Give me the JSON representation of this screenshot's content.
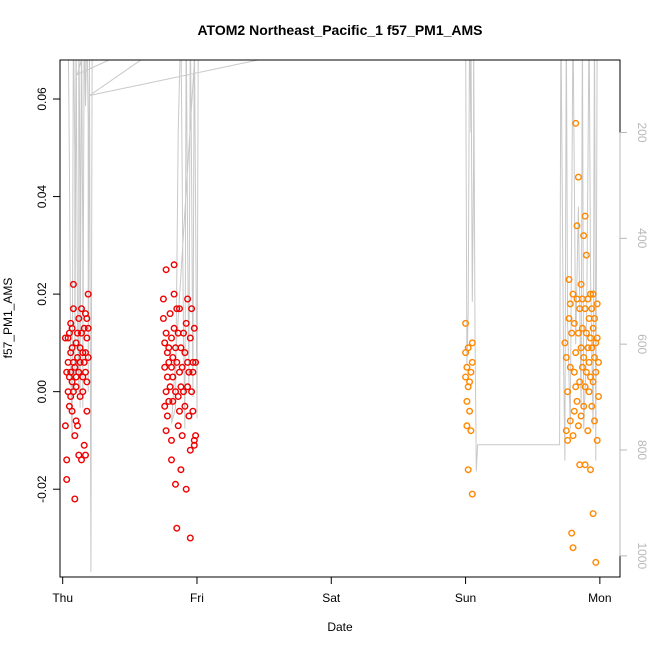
{
  "chart_data": {
    "type": "scatter",
    "title": "ATOM2 Northeast_Pacific_1 f57_PM1_AMS",
    "xlabel": "Date",
    "ylabel": "f57_PM1_AMS",
    "x_ticks": [
      "Thu",
      "Fri",
      "Sat",
      "Sun",
      "Mon"
    ],
    "y_ticks": [
      -0.02,
      0.0,
      0.02,
      0.04,
      0.06
    ],
    "y_tick_labels": [
      "-0.02",
      "0.00",
      "0.02",
      "0.04",
      "0.06"
    ],
    "ylim": [
      -0.038,
      0.068
    ],
    "xlim": [
      -0.02,
      4.15
    ],
    "right_axis": {
      "ticks": [
        200,
        400,
        600,
        800,
        1000
      ],
      "tick_labels": [
        "200",
        "400",
        "600",
        "800",
        "1000"
      ],
      "lim": [
        63,
        1040
      ],
      "reversed": true,
      "color": "#b8b8b8"
    },
    "series": [
      {
        "color": "#ee0000",
        "points": [
          [
            0.02,
            0.011
          ],
          [
            0.02,
            -0.007
          ],
          [
            0.03,
            0.004
          ],
          [
            0.03,
            -0.018
          ],
          [
            0.03,
            -0.014
          ],
          [
            0.04,
            0.006
          ],
          [
            0.04,
            0.0
          ],
          [
            0.04,
            0.011
          ],
          [
            0.05,
            0.012
          ],
          [
            0.05,
            0.003
          ],
          [
            0.05,
            -0.003
          ],
          [
            0.06,
            0.008
          ],
          [
            0.06,
            0.014
          ],
          [
            0.06,
            0.004
          ],
          [
            0.06,
            -0.001
          ],
          [
            0.07,
            0.009
          ],
          [
            0.07,
            0.002
          ],
          [
            0.07,
            0.013
          ],
          [
            0.07,
            -0.004
          ],
          [
            0.08,
            0.017
          ],
          [
            0.08,
            0.022
          ],
          [
            0.08,
            0.006
          ],
          [
            0.08,
            0.0
          ],
          [
            0.09,
            0.005
          ],
          [
            0.09,
            -0.009
          ],
          [
            0.09,
            -0.022
          ],
          [
            0.1,
            0.01
          ],
          [
            0.1,
            0.003
          ],
          [
            0.1,
            -0.006
          ],
          [
            0.1,
            0.001
          ],
          [
            0.11,
            0.012
          ],
          [
            0.11,
            0.007
          ],
          [
            0.11,
            -0.007
          ],
          [
            0.12,
            0.004
          ],
          [
            0.12,
            0.015
          ],
          [
            0.12,
            -0.013
          ],
          [
            0.13,
            0.006
          ],
          [
            0.13,
            -0.001
          ],
          [
            0.13,
            0.009
          ],
          [
            0.14,
            0.017
          ],
          [
            0.14,
            0.012
          ],
          [
            0.14,
            -0.014
          ],
          [
            0.15,
            0.008
          ],
          [
            0.15,
            0.0
          ],
          [
            0.15,
            0.003
          ],
          [
            0.16,
            0.013
          ],
          [
            0.16,
            -0.011
          ],
          [
            0.16,
            0.006
          ],
          [
            0.17,
            0.016
          ],
          [
            0.17,
            0.004
          ],
          [
            0.17,
            -0.013
          ],
          [
            0.17,
            0.008
          ],
          [
            0.18,
            0.011
          ],
          [
            0.18,
            0.002
          ],
          [
            0.18,
            0.015
          ],
          [
            0.18,
            -0.004
          ],
          [
            0.19,
            0.013
          ],
          [
            0.19,
            0.02
          ],
          [
            0.19,
            0.007
          ],
          [
            0.75,
            0.019
          ],
          [
            0.75,
            0.015
          ],
          [
            0.76,
            0.01
          ],
          [
            0.76,
            0.005
          ],
          [
            0.76,
            -0.003
          ],
          [
            0.77,
            0.012
          ],
          [
            0.77,
            0.025
          ],
          [
            0.77,
            0.0
          ],
          [
            0.77,
            -0.008
          ],
          [
            0.78,
            0.008
          ],
          [
            0.78,
            -0.005
          ],
          [
            0.78,
            0.003
          ],
          [
            0.79,
            0.006
          ],
          [
            0.79,
            0.009
          ],
          [
            0.79,
            -0.002
          ],
          [
            0.8,
            0.016
          ],
          [
            0.8,
            0.001
          ],
          [
            0.81,
            0.005
          ],
          [
            0.81,
            0.011
          ],
          [
            0.81,
            -0.01
          ],
          [
            0.81,
            -0.014
          ],
          [
            0.82,
            0.003
          ],
          [
            0.82,
            0.007
          ],
          [
            0.82,
            -0.002
          ],
          [
            0.83,
            0.026
          ],
          [
            0.83,
            0.02
          ],
          [
            0.83,
            0.013
          ],
          [
            0.84,
            0.009
          ],
          [
            0.84,
            0.0
          ],
          [
            0.84,
            -0.019
          ],
          [
            0.85,
            -0.028
          ],
          [
            0.85,
            0.006
          ],
          [
            0.85,
            0.017
          ],
          [
            0.86,
            0.012
          ],
          [
            0.86,
            -0.001
          ],
          [
            0.86,
            -0.007
          ],
          [
            0.87,
            0.004
          ],
          [
            0.87,
            -0.004
          ],
          [
            0.87,
            0.017
          ],
          [
            0.88,
            0.001
          ],
          [
            0.88,
            0.009
          ],
          [
            0.88,
            -0.016
          ],
          [
            0.89,
            -0.009
          ],
          [
            0.89,
            0.005
          ],
          [
            0.9,
            0.012
          ],
          [
            0.9,
            0.0
          ],
          [
            0.91,
            0.008
          ],
          [
            0.91,
            -0.003
          ],
          [
            0.92,
            0.014
          ],
          [
            0.92,
            -0.02
          ],
          [
            0.93,
            0.006
          ],
          [
            0.93,
            0.001
          ],
          [
            0.93,
            0.019
          ],
          [
            0.94,
            -0.005
          ],
          [
            0.94,
            0.004
          ],
          [
            0.95,
            -0.03
          ],
          [
            0.95,
            0.011
          ],
          [
            0.95,
            -0.012
          ],
          [
            0.96,
            0.017
          ],
          [
            0.96,
            0.0
          ],
          [
            0.97,
            0.004
          ],
          [
            0.97,
            0.006
          ],
          [
            0.97,
            -0.004
          ],
          [
            0.98,
            0.013
          ],
          [
            0.98,
            -0.01
          ],
          [
            0.98,
            -0.011
          ],
          [
            0.99,
            0.006
          ],
          [
            0.99,
            -0.009
          ]
        ]
      },
      {
        "color": "#ff8800",
        "points": [
          [
            3.0,
            0.014
          ],
          [
            3.0,
            0.008
          ],
          [
            3.0,
            0.003
          ],
          [
            3.01,
            -0.002
          ],
          [
            3.01,
            0.005
          ],
          [
            3.01,
            -0.007
          ],
          [
            3.02,
            -0.016
          ],
          [
            3.02,
            0.001
          ],
          [
            3.02,
            0.009
          ],
          [
            3.03,
            -0.004
          ],
          [
            3.03,
            0.002
          ],
          [
            3.04,
            -0.008
          ],
          [
            3.04,
            0.004
          ],
          [
            3.05,
            -0.021
          ],
          [
            3.05,
            0.01
          ],
          [
            3.05,
            0.006
          ],
          [
            3.74,
            0.01
          ],
          [
            3.75,
            0.007
          ],
          [
            3.75,
            -0.008
          ],
          [
            3.76,
            0.0
          ],
          [
            3.76,
            -0.01
          ],
          [
            3.77,
            0.023
          ],
          [
            3.77,
            0.015
          ],
          [
            3.78,
            0.018
          ],
          [
            3.78,
            -0.006
          ],
          [
            3.78,
            0.005
          ],
          [
            3.79,
            -0.029
          ],
          [
            3.79,
            0.012
          ],
          [
            3.8,
            -0.032
          ],
          [
            3.8,
            -0.009
          ],
          [
            3.8,
            0.02
          ],
          [
            3.81,
            0.004
          ],
          [
            3.81,
            0.014
          ],
          [
            3.81,
            -0.004
          ],
          [
            3.82,
            0.055
          ],
          [
            3.82,
            0.008
          ],
          [
            3.82,
            0.001
          ],
          [
            3.83,
            0.034
          ],
          [
            3.83,
            -0.002
          ],
          [
            3.83,
            0.019
          ],
          [
            3.84,
            0.044
          ],
          [
            3.84,
            0.012
          ],
          [
            3.84,
            -0.007
          ],
          [
            3.85,
            0.017
          ],
          [
            3.85,
            0.002
          ],
          [
            3.85,
            -0.015
          ],
          [
            3.86,
            0.022
          ],
          [
            3.86,
            0.009
          ],
          [
            3.86,
            -0.005
          ],
          [
            3.87,
            0.013
          ],
          [
            3.87,
            0.005
          ],
          [
            3.87,
            0.019
          ],
          [
            3.88,
            0.032
          ],
          [
            3.88,
            0.007
          ],
          [
            3.88,
            -0.003
          ],
          [
            3.89,
            0.036
          ],
          [
            3.89,
            0.017
          ],
          [
            3.89,
            0.001
          ],
          [
            3.89,
            -0.015
          ],
          [
            3.9,
            0.028
          ],
          [
            3.9,
            0.012
          ],
          [
            3.9,
            0.004
          ],
          [
            3.91,
            0.019
          ],
          [
            3.91,
            0.009
          ],
          [
            3.91,
            -0.008
          ],
          [
            3.92,
            0.015
          ],
          [
            3.92,
            0.006
          ],
          [
            3.92,
            0.0
          ],
          [
            3.93,
            0.02
          ],
          [
            3.93,
            0.011
          ],
          [
            3.93,
            -0.016
          ],
          [
            3.93,
            0.003
          ],
          [
            3.94,
            0.017
          ],
          [
            3.94,
            -0.003
          ],
          [
            3.94,
            0.009
          ],
          [
            3.95,
            0.02
          ],
          [
            3.95,
            0.013
          ],
          [
            3.95,
            0.002
          ],
          [
            3.95,
            -0.025
          ],
          [
            3.96,
            0.007
          ],
          [
            3.96,
            -0.006
          ],
          [
            3.96,
            0.015
          ],
          [
            3.97,
            -0.035
          ],
          [
            3.97,
            0.01
          ],
          [
            3.97,
            0.004
          ],
          [
            3.98,
            0.018
          ],
          [
            3.98,
            -0.01
          ],
          [
            3.98,
            0.011
          ],
          [
            3.99,
            0.006
          ],
          [
            3.99,
            -0.001
          ]
        ]
      }
    ],
    "secondary_line": {
      "color": "#c8c8c8",
      "points": [
        [
          0.04,
          -12
        ],
        [
          0.05,
          260
        ],
        [
          0.06,
          640
        ],
        [
          0.07,
          780
        ],
        [
          0.08,
          -12
        ],
        [
          0.09,
          240
        ],
        [
          0.09,
          690
        ],
        [
          0.1,
          -12
        ],
        [
          0.11,
          560
        ],
        [
          0.12,
          690
        ],
        [
          0.12,
          -12
        ],
        [
          0.13,
          300
        ],
        [
          0.13,
          720
        ],
        [
          0.14,
          -12
        ],
        [
          0.15,
          410
        ],
        [
          0.15,
          720
        ],
        [
          0.16,
          -12
        ],
        [
          0.17,
          150
        ],
        [
          0.18,
          -12
        ],
        [
          0.19,
          180
        ],
        [
          0.19,
          690
        ],
        [
          0.2,
          -12
        ],
        [
          0.2,
          100
        ],
        [
          0.21,
          1030
        ],
        [
          0.22,
          -12
        ],
        [
          0.11,
          90
        ],
        [
          1.0,
          -12
        ],
        [
          0.81,
          750
        ],
        [
          0.84,
          720
        ],
        [
          0.86,
          200
        ],
        [
          0.88,
          -12
        ],
        [
          0.9,
          590
        ],
        [
          0.91,
          760
        ],
        [
          0.92,
          -12
        ],
        [
          0.93,
          400
        ],
        [
          0.94,
          680
        ],
        [
          0.95,
          -12
        ],
        [
          0.96,
          280
        ],
        [
          0.97,
          700
        ],
        [
          0.98,
          -12
        ],
        [
          1.0,
          740
        ],
        [
          1.01,
          -12
        ],
        [
          0.2,
          130
        ],
        [
          2.86,
          -12
        ],
        [
          3.0,
          -12
        ],
        [
          3.01,
          640
        ],
        [
          3.02,
          540
        ],
        [
          3.03,
          -12
        ],
        [
          3.04,
          200
        ],
        [
          3.04,
          -12
        ],
        [
          3.05,
          520
        ],
        [
          3.06,
          260
        ],
        [
          3.06,
          -12
        ],
        [
          3.07,
          580
        ],
        [
          3.08,
          840
        ],
        [
          3.09,
          790
        ],
        [
          3.7,
          790
        ],
        [
          3.71,
          -12
        ],
        [
          3.73,
          640
        ],
        [
          3.74,
          820
        ],
        [
          3.75,
          -12
        ],
        [
          3.76,
          560
        ],
        [
          3.78,
          760
        ],
        [
          3.8,
          -12
        ],
        [
          3.82,
          600
        ],
        [
          3.84,
          340
        ],
        [
          3.86,
          720
        ],
        [
          3.87,
          -12
        ],
        [
          3.88,
          760
        ],
        [
          3.9,
          620
        ],
        [
          3.92,
          -12
        ],
        [
          3.93,
          460
        ],
        [
          3.95,
          760
        ],
        [
          3.96,
          -12
        ],
        [
          3.97,
          820
        ],
        [
          3.98,
          -12
        ]
      ]
    }
  }
}
